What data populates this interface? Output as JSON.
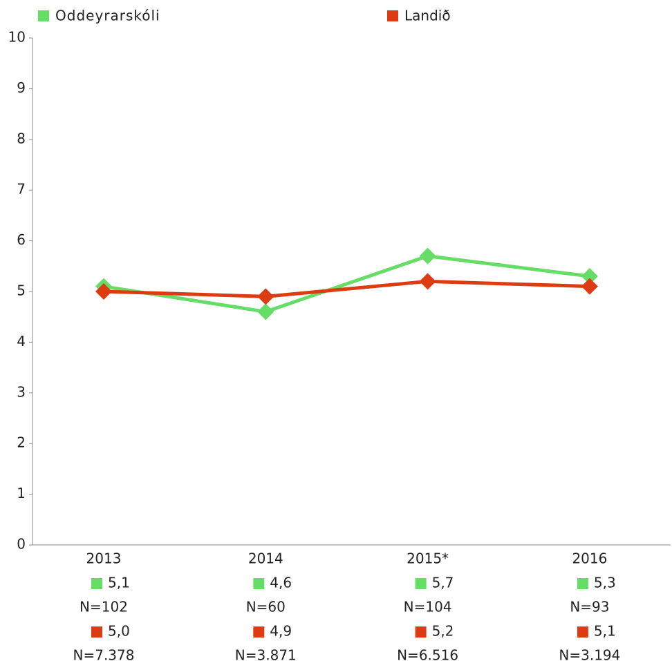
{
  "chart_data": {
    "type": "line",
    "categories": [
      "2013",
      "2014",
      "2015*",
      "2016"
    ],
    "series": [
      {
        "name": "Oddeyrarskóli",
        "color": "#66dd66",
        "values": [
          5.1,
          4.6,
          5.7,
          5.3
        ],
        "value_labels": [
          "5,1",
          "4,6",
          "5,7",
          "5,3"
        ],
        "n_labels": [
          "N=102",
          "N=60",
          "N=104",
          "N=93"
        ]
      },
      {
        "name": "Landið",
        "color": "#dd3c12",
        "values": [
          5.0,
          4.9,
          5.2,
          5.1
        ],
        "value_labels": [
          "5,0",
          "4,9",
          "5,2",
          "5,1"
        ],
        "n_labels": [
          "N=7.378",
          "N=3.871",
          "N=6.516",
          "N=3.194"
        ]
      }
    ],
    "ylim": [
      0,
      10
    ],
    "yticks": [
      0,
      1,
      2,
      3,
      4,
      5,
      6,
      7,
      8,
      9,
      10
    ],
    "legend": "top"
  }
}
